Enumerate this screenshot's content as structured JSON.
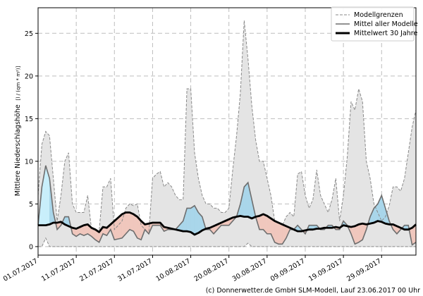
{
  "chart_data": {
    "type": "area",
    "ylabel": "Mittlere Niederschlagshöhe",
    "ylabel_unit": "[l / (qm * m²)]",
    "ylim": [
      -1,
      28
    ],
    "yticks": [
      0,
      5,
      10,
      15,
      20,
      25
    ],
    "x_count": 100,
    "xtick_labels": [
      "01.07.2017",
      "11.07.2017",
      "21.07.2017",
      "31.07.2017",
      "10.08.2017",
      "20.08.2017",
      "30.08.2017",
      "09.09.2017",
      "19.09.2017",
      "29.09.2017"
    ],
    "xtick_index": [
      0,
      10,
      20,
      30,
      40,
      50,
      60,
      70,
      80,
      90
    ],
    "grid": true,
    "legend_position": "top-right",
    "legend": {
      "range": "Modellgrenzen",
      "mean_models": "Mittel aller Modelle",
      "mean_30y": "Mittelwert 30 Jahre"
    },
    "colors": {
      "range_fill": "#e4e4e4",
      "range_line": "#8a8a8a",
      "above_fill": "#a9d6ea",
      "below_fill": "#f0c7bd",
      "first_fill": "#c9effb",
      "models_line": "#6e6e6e",
      "clim_line": "#000000",
      "grid": "#bdbdbd"
    },
    "series": [
      {
        "name": "Modellgrenzen (max)",
        "values": [
          6,
          12,
          13.5,
          13,
          8,
          3,
          6,
          10,
          11,
          5,
          4,
          4,
          4,
          6,
          2,
          2,
          1.8,
          7,
          7,
          8,
          2,
          2.5,
          3,
          4.5,
          5,
          4.8,
          5,
          2.5,
          2,
          1.5,
          8,
          8.5,
          8.8,
          7,
          7.5,
          7,
          6,
          5.5,
          5.5,
          18.5,
          18.5,
          11,
          8,
          6,
          5,
          5,
          4.5,
          4.5,
          4,
          4,
          4.5,
          9,
          13,
          18,
          26.5,
          22,
          16.5,
          12.5,
          10,
          10,
          8,
          6,
          3,
          2.8,
          2.5,
          3.5,
          4,
          3.5,
          8.5,
          8.8,
          6,
          4.5,
          5.5,
          9,
          6,
          5,
          4,
          5.5,
          8,
          3,
          6,
          10.5,
          17,
          16,
          18.5,
          17,
          10,
          8,
          5,
          4,
          3,
          3.5,
          4.8,
          7,
          7,
          6.5,
          8,
          11,
          14,
          16
        ]
      },
      {
        "name": "Modellgrenzen (min)",
        "values": [
          0,
          0,
          1,
          0,
          0,
          0,
          0,
          0,
          0,
          0,
          0,
          0,
          0,
          0,
          0,
          0,
          0,
          0,
          0,
          0,
          0,
          0,
          0,
          0,
          0,
          0,
          0,
          0,
          0,
          0,
          0,
          0,
          0,
          0,
          0,
          0,
          0,
          0,
          0,
          0,
          0,
          0,
          0,
          0,
          0,
          0,
          0,
          0,
          0,
          0,
          0,
          0,
          0,
          0,
          0,
          0.4,
          0,
          0,
          0,
          0,
          0,
          0,
          0,
          0,
          0,
          0,
          0,
          0,
          0,
          0,
          0,
          0,
          0,
          0,
          0,
          0,
          0,
          0,
          0,
          0,
          0,
          0,
          0,
          0,
          0,
          0,
          0,
          0,
          0,
          0,
          0,
          0,
          0,
          0,
          0,
          0,
          0,
          0,
          0,
          0
        ]
      },
      {
        "name": "Mittel aller Modelle",
        "values": [
          2.5,
          7,
          9.5,
          8,
          4,
          2,
          2.5,
          3.5,
          3.5,
          1.5,
          1.2,
          1.5,
          1.3,
          1.5,
          1.2,
          0.8,
          0.5,
          1.5,
          1.3,
          2,
          0.8,
          0.9,
          1,
          1.5,
          2,
          1.8,
          1,
          0.8,
          2,
          1.5,
          2.5,
          2.5,
          2.5,
          1.8,
          2,
          2,
          2,
          2.5,
          3,
          4.5,
          4.5,
          4.8,
          4,
          3.5,
          2,
          2,
          1.5,
          2,
          2.5,
          2.5,
          2.5,
          3,
          3.5,
          5,
          7,
          7.5,
          5.5,
          3.5,
          2,
          2,
          1.5,
          1.5,
          0.5,
          0.3,
          0.3,
          1,
          2,
          2,
          2.5,
          2,
          1.5,
          2.5,
          2.5,
          2.5,
          2,
          2,
          2.5,
          2.5,
          2,
          2,
          3,
          2.5,
          1.5,
          0.3,
          0.5,
          0.8,
          2,
          3.5,
          4.5,
          5,
          6,
          4.5,
          3,
          2,
          1.5,
          2,
          2.5,
          2.5,
          0.2,
          0.5
        ]
      },
      {
        "name": "Mittelwert 30 Jahre",
        "values": [
          2.5,
          2.5,
          2.5,
          2.6,
          2.8,
          2.8,
          2.9,
          2.6,
          2.4,
          2.2,
          2.1,
          2.3,
          2.5,
          2.6,
          2.2,
          2.0,
          1.7,
          2.3,
          2.2,
          2.6,
          3.0,
          3.4,
          3.8,
          4.0,
          4.0,
          3.8,
          3.5,
          3.0,
          2.6,
          2.7,
          2.8,
          2.8,
          2.8,
          2.3,
          2.2,
          2.1,
          2.0,
          1.9,
          1.8,
          1.8,
          1.7,
          1.4,
          1.6,
          1.9,
          2.1,
          2.2,
          2.4,
          2.6,
          2.8,
          3.0,
          3.2,
          3.4,
          3.5,
          3.6,
          3.5,
          3.5,
          3.3,
          3.5,
          3.6,
          3.8,
          3.6,
          3.3,
          3.0,
          2.8,
          2.6,
          2.4,
          2.2,
          2.0,
          1.8,
          1.8,
          1.9,
          2.0,
          2.0,
          2.1,
          2.1,
          2.2,
          2.2,
          2.2,
          2.3,
          2.2,
          2.5,
          2.4,
          2.3,
          2.4,
          2.6,
          2.7,
          2.6,
          2.7,
          2.8,
          3.0,
          2.9,
          2.7,
          2.6,
          2.6,
          2.4,
          2.2,
          2.0,
          2.0,
          2.2,
          2.6
        ]
      }
    ]
  },
  "footer": {
    "credit": "(c) Donnerwetter.de GmbH SLM-Modell, Lauf 23.06.2017 00 Uhr"
  }
}
